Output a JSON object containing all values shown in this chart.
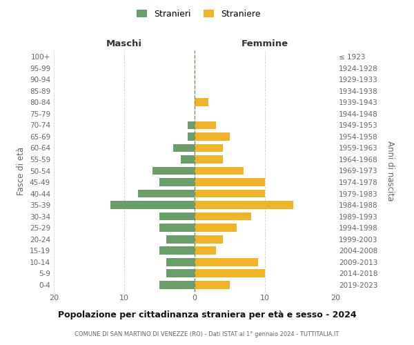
{
  "age_groups": [
    "0-4",
    "5-9",
    "10-14",
    "15-19",
    "20-24",
    "25-29",
    "30-34",
    "35-39",
    "40-44",
    "45-49",
    "50-54",
    "55-59",
    "60-64",
    "65-69",
    "70-74",
    "75-79",
    "80-84",
    "85-89",
    "90-94",
    "95-99",
    "100+"
  ],
  "birth_years": [
    "2019-2023",
    "2014-2018",
    "2009-2013",
    "2004-2008",
    "1999-2003",
    "1994-1998",
    "1989-1993",
    "1984-1988",
    "1979-1983",
    "1974-1978",
    "1969-1973",
    "1964-1968",
    "1959-1963",
    "1954-1958",
    "1949-1953",
    "1944-1948",
    "1939-1943",
    "1934-1938",
    "1929-1933",
    "1924-1928",
    "≤ 1923"
  ],
  "males": [
    5,
    4,
    4,
    5,
    4,
    5,
    5,
    12,
    8,
    5,
    6,
    2,
    3,
    1,
    1,
    0,
    0,
    0,
    0,
    0,
    0
  ],
  "females": [
    5,
    10,
    9,
    3,
    4,
    6,
    8,
    14,
    10,
    10,
    7,
    4,
    4,
    5,
    3,
    0,
    2,
    0,
    0,
    0,
    0
  ],
  "male_color": "#6a9e6a",
  "female_color": "#f0b429",
  "background_color": "#ffffff",
  "grid_color": "#d0d0d0",
  "title": "Popolazione per cittadinanza straniera per età e sesso - 2024",
  "subtitle": "COMUNE DI SAN MARTINO DI VENEZZE (RO) - Dati ISTAT al 1° gennaio 2024 - TUTTITALIA.IT",
  "xlabel_left": "Maschi",
  "xlabel_right": "Femmine",
  "ylabel_left": "Fasce di età",
  "ylabel_right": "Anni di nascita",
  "legend_males": "Stranieri",
  "legend_females": "Straniere",
  "xlim": 20
}
